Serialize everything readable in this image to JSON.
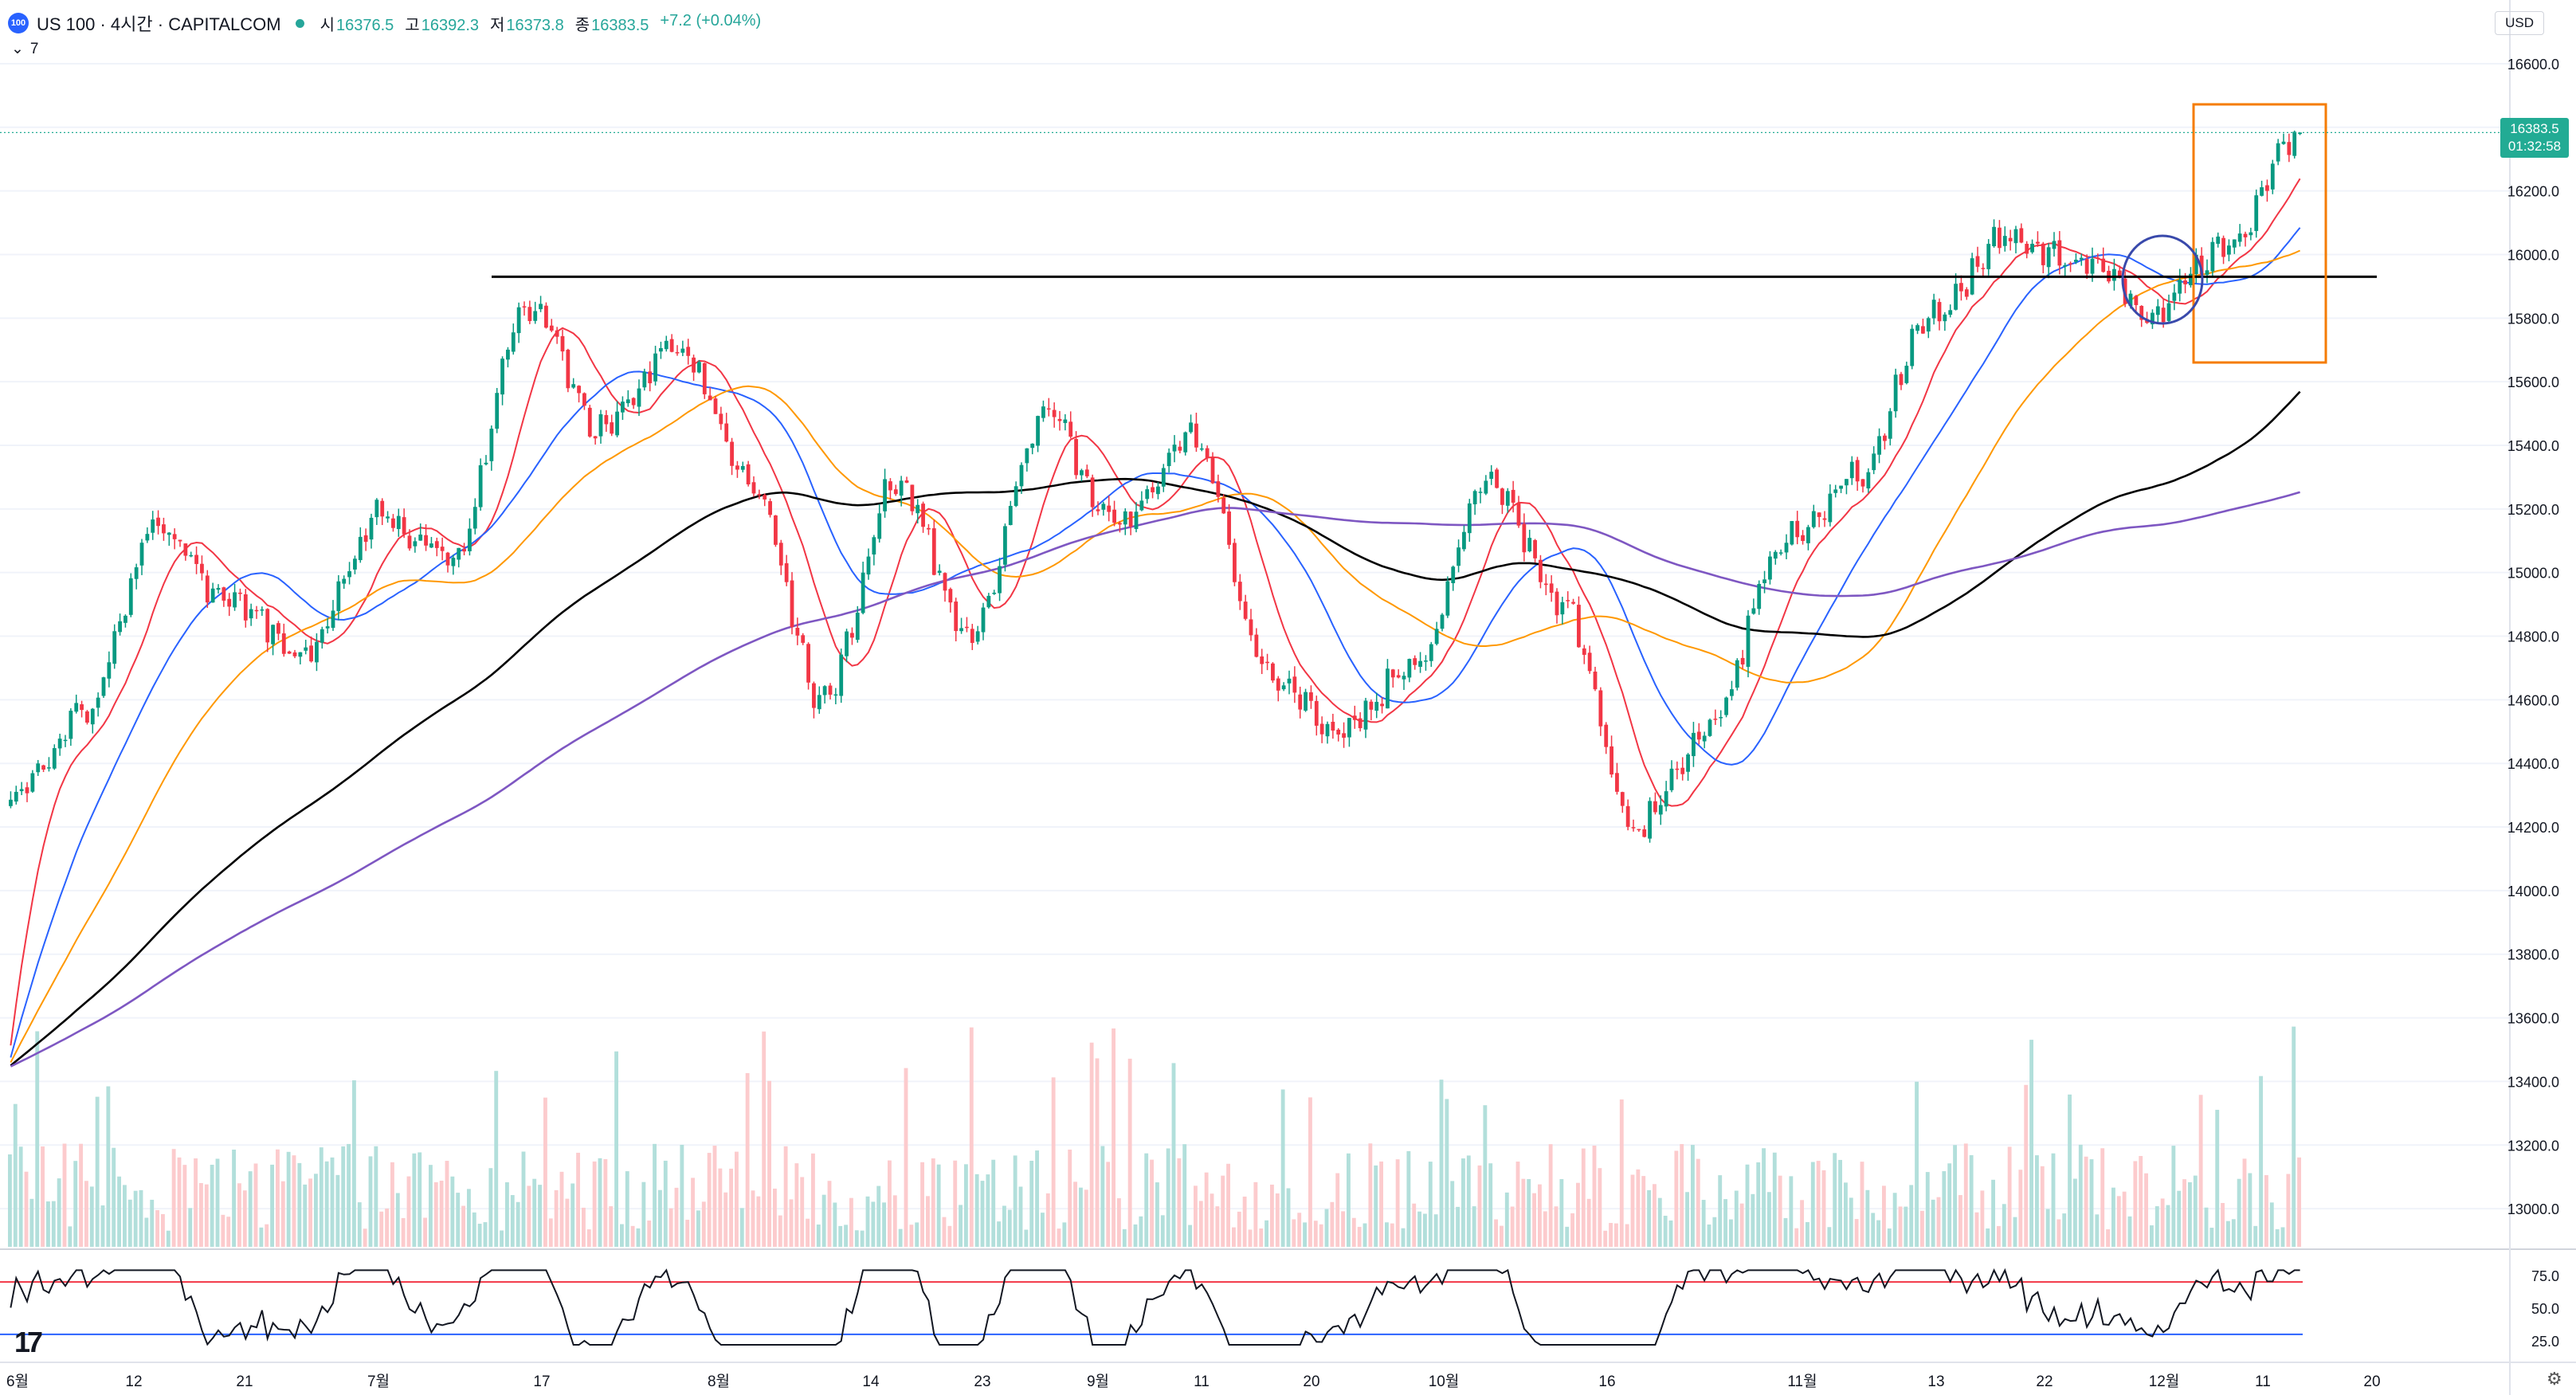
{
  "header": {
    "badge": "100",
    "title": "US 100 · 4시간 · CAPITALCOM",
    "open_label": "시",
    "open": "16376.5",
    "high_label": "고",
    "high": "16392.3",
    "low_label": "저",
    "low": "16373.8",
    "close_label": "종",
    "close": "16383.5",
    "change": "+7.2 (+0.04%)",
    "indicator_count": "7",
    "currency": "USD"
  },
  "price_axis": {
    "ticks": [
      "16600.0",
      "16400.0",
      "16200.0",
      "16000.0",
      "15800.0",
      "15600.0",
      "15400.0",
      "15200.0",
      "15000.0",
      "14800.0",
      "14600.0",
      "14400.0",
      "14200.0",
      "14000.0",
      "13800.0",
      "13600.0",
      "13400.0",
      "13200.0",
      "13000.0"
    ],
    "last_price": "16383.5",
    "countdown": "01:32:58"
  },
  "rsi_axis": {
    "ticks": [
      "75.0",
      "50.0",
      "25.0"
    ],
    "upper": 70,
    "lower": 30
  },
  "time_axis": [
    {
      "label": "6월"
    },
    {
      "label": "12"
    },
    {
      "label": "21"
    },
    {
      "label": "7월"
    },
    {
      "label": "17"
    },
    {
      "label": "8월"
    },
    {
      "label": "14"
    },
    {
      "label": "23"
    },
    {
      "label": "9월"
    },
    {
      "label": "11"
    },
    {
      "label": "20"
    },
    {
      "label": "10월"
    },
    {
      "label": "16"
    },
    {
      "label": "11월"
    },
    {
      "label": "13"
    },
    {
      "label": "22"
    },
    {
      "label": "12월"
    },
    {
      "label": "11"
    },
    {
      "label": "20"
    }
  ],
  "chart_data": {
    "type": "candlestick",
    "series_key_points": [
      {
        "date": "6월 1",
        "close": 14280
      },
      {
        "date": "6월 12",
        "close": 14560
      },
      {
        "date": "6월 16",
        "close": 15150
      },
      {
        "date": "6월 21",
        "close": 14900
      },
      {
        "date": "6월 28",
        "close": 14750
      },
      {
        "date": "7월 3",
        "close": 15180
      },
      {
        "date": "7월 10",
        "close": 15050
      },
      {
        "date": "7월 19",
        "close": 15850
      },
      {
        "date": "7월 26",
        "close": 15450
      },
      {
        "date": "8월 1",
        "close": 15720
      },
      {
        "date": "8월 8",
        "close": 15300
      },
      {
        "date": "8월 18",
        "close": 14600
      },
      {
        "date": "8월 24",
        "close": 15300
      },
      {
        "date": "8월 28",
        "close": 14800
      },
      {
        "date": "9월 1",
        "close": 15500
      },
      {
        "date": "9월 7",
        "close": 15150
      },
      {
        "date": "9월 14",
        "close": 15450
      },
      {
        "date": "9월 21",
        "close": 14700
      },
      {
        "date": "9월 27",
        "close": 14500
      },
      {
        "date": "10월 6",
        "close": 14700
      },
      {
        "date": "10월 12",
        "close": 15300
      },
      {
        "date": "10월 20",
        "close": 14900
      },
      {
        "date": "10월 26",
        "close": 14200
      },
      {
        "date": "11월 1",
        "close": 14500
      },
      {
        "date": "11월 6",
        "close": 15100
      },
      {
        "date": "11월 10",
        "close": 15300
      },
      {
        "date": "11월 14",
        "close": 15800
      },
      {
        "date": "11월 20",
        "close": 16050
      },
      {
        "date": "11월 28",
        "close": 15980
      },
      {
        "date": "12월 4",
        "close": 15820
      },
      {
        "date": "12월 8",
        "close": 16020
      },
      {
        "date": "12월 13",
        "close": 16383.5
      }
    ],
    "horizontal_line": 15930,
    "moving_averages": [
      {
        "color": "#f23645"
      },
      {
        "color": "#2962ff"
      },
      {
        "color": "#ff9800"
      },
      {
        "color": "#000000"
      },
      {
        "color": "#7e57c2"
      }
    ],
    "ylim": [
      12880,
      16650
    ],
    "annotations": [
      {
        "type": "rectangle",
        "color": "#f57c00"
      },
      {
        "type": "circle",
        "color": "#3949ab"
      }
    ],
    "colors": {
      "up": "#089981",
      "down": "#f23645",
      "vol_up": "#b2dfdb",
      "vol_down": "#fccbcd"
    }
  }
}
